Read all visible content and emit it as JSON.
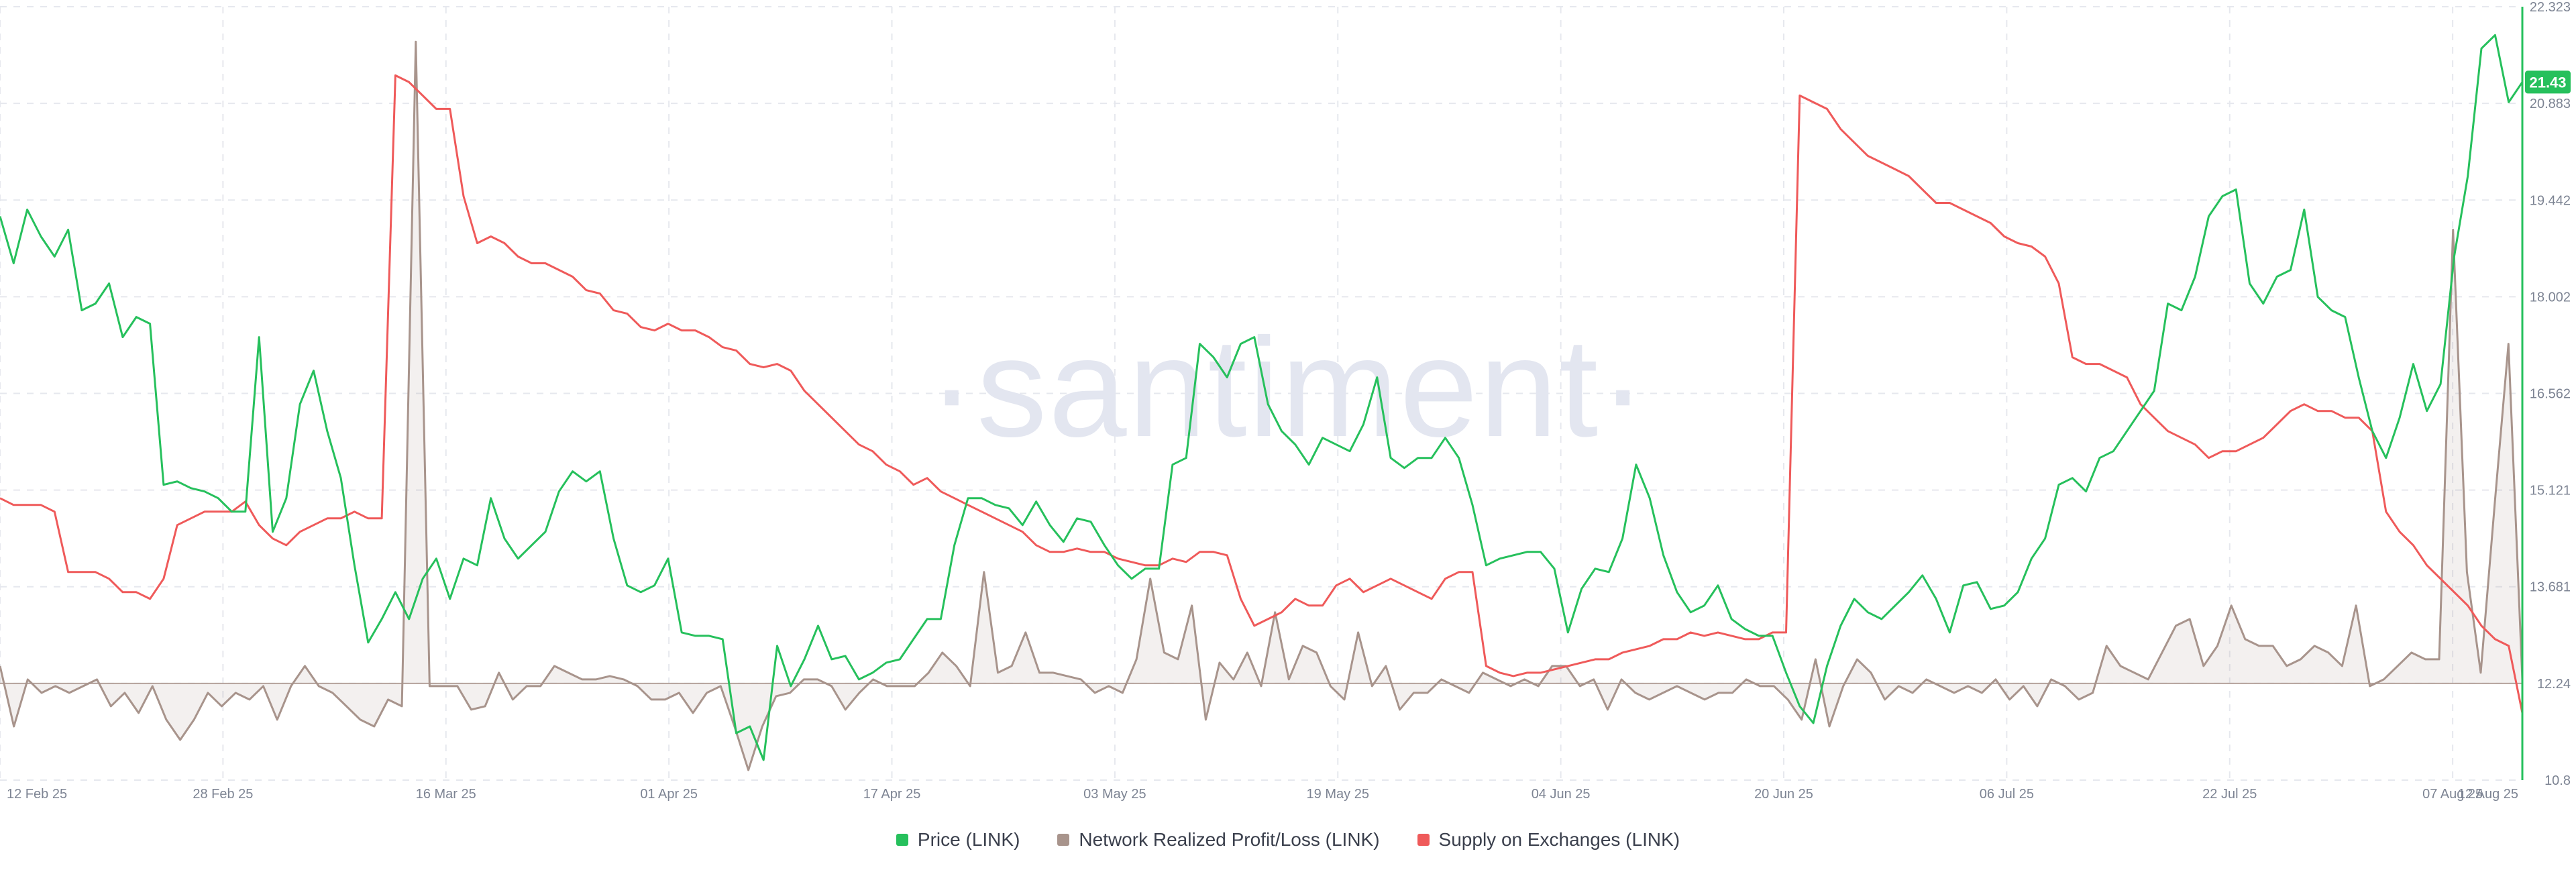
{
  "watermark": "·santiment·",
  "legend": [
    {
      "label": "Price (LINK)",
      "color": "#26c05c"
    },
    {
      "label": "Network Realized Profit/Loss (LINK)",
      "color": "#a8948c"
    },
    {
      "label": "Supply on Exchanges (LINK)",
      "color": "#ef5a5a"
    }
  ],
  "chart_data": {
    "type": "line",
    "x_ticks": [
      "12 Feb 25",
      "28 Feb 25",
      "16 Mar 25",
      "01 Apr 25",
      "17 Apr 25",
      "03 May 25",
      "19 May 25",
      "04 Jun 25",
      "20 Jun 25",
      "06 Jul 25",
      "22 Jul 25",
      "07 Aug 25",
      "12 Aug 25"
    ],
    "x_range": [
      "2025-02-12",
      "2025-08-12"
    ],
    "y_axis": {
      "label": "Price (LINK)",
      "ticks": [
        "10.8",
        "12.24",
        "13.681",
        "15.121",
        "16.562",
        "18.002",
        "19.442",
        "20.883",
        "22.323"
      ],
      "range": [
        10.8,
        22.323
      ],
      "color": "#26c05c",
      "last_value_label": "21.43"
    },
    "grid": true,
    "legend_position": "bottom-center",
    "series": [
      {
        "name": "Price (LINK)",
        "color": "#26c05c",
        "values": [
          19.2,
          18.5,
          19.3,
          18.9,
          18.6,
          19.0,
          17.8,
          17.9,
          18.2,
          17.4,
          17.7,
          17.6,
          15.2,
          15.25,
          15.15,
          15.1,
          15.0,
          14.8,
          14.8,
          17.4,
          14.5,
          15.0,
          16.4,
          16.9,
          16.0,
          15.3,
          14.0,
          12.85,
          13.2,
          13.6,
          13.2,
          13.8,
          14.1,
          13.5,
          14.1,
          14.0,
          15.0,
          14.4,
          14.1,
          14.3,
          14.5,
          15.1,
          15.4,
          15.25,
          15.4,
          14.4,
          13.7,
          13.6,
          13.7,
          14.1,
          13.0,
          12.95,
          12.95,
          12.9,
          11.5,
          11.6,
          11.1,
          12.8,
          12.2,
          12.6,
          13.1,
          12.6,
          12.65,
          12.3,
          12.4,
          12.55,
          12.6,
          12.9,
          13.2,
          13.2,
          14.3,
          15.0,
          15.0,
          14.9,
          14.85,
          14.6,
          14.95,
          14.6,
          14.35,
          14.7,
          14.65,
          14.3,
          14.0,
          13.8,
          13.95,
          13.95,
          15.5,
          15.6,
          17.3,
          17.1,
          16.8,
          17.3,
          17.4,
          16.4,
          16.0,
          15.8,
          15.5,
          15.9,
          15.8,
          15.7,
          16.1,
          16.8,
          15.6,
          15.45,
          15.6,
          15.6,
          15.9,
          15.6,
          14.9,
          14.0,
          14.1,
          14.15,
          14.2,
          14.2,
          13.95,
          13.0,
          13.65,
          13.95,
          13.9,
          14.4,
          15.5,
          15.0,
          14.15,
          13.6,
          13.3,
          13.4,
          13.7,
          13.2,
          13.05,
          12.95,
          12.95,
          12.4,
          11.9,
          11.65,
          12.5,
          13.1,
          13.5,
          13.3,
          13.2,
          13.4,
          13.6,
          13.85,
          13.5,
          13.0,
          13.7,
          13.75,
          13.35,
          13.4,
          13.6,
          14.1,
          14.4,
          15.2,
          15.3,
          15.1,
          15.6,
          15.7,
          16.0,
          16.3,
          16.6,
          17.9,
          17.8,
          18.3,
          19.2,
          19.5,
          19.6,
          18.2,
          17.9,
          18.3,
          18.4,
          19.3,
          18.0,
          17.8,
          17.7,
          16.8,
          16.0,
          15.6,
          16.2,
          17.0,
          16.3,
          16.7,
          18.6,
          19.8,
          21.7,
          21.9,
          20.9,
          21.2
        ]
      },
      {
        "name": "Network Realized Profit/Loss (LINK)",
        "color": "#a8948c",
        "values": [
          12.5,
          11.6,
          12.3,
          12.1,
          12.2,
          12.1,
          12.2,
          12.3,
          11.9,
          12.1,
          11.8,
          12.2,
          11.7,
          11.4,
          11.7,
          12.1,
          11.9,
          12.1,
          12.0,
          12.2,
          11.7,
          12.2,
          12.5,
          12.2,
          12.1,
          11.9,
          11.7,
          11.6,
          12.0,
          11.9,
          21.8,
          12.2,
          12.2,
          12.2,
          11.85,
          11.9,
          12.4,
          12.0,
          12.2,
          12.2,
          12.5,
          12.4,
          12.3,
          12.3,
          12.35,
          12.3,
          12.2,
          12.0,
          12.0,
          12.1,
          11.8,
          12.1,
          12.2,
          11.6,
          10.95,
          11.6,
          12.05,
          12.1,
          12.3,
          12.3,
          12.2,
          11.85,
          12.1,
          12.3,
          12.2,
          12.2,
          12.2,
          12.4,
          12.7,
          12.5,
          12.2,
          13.9,
          12.4,
          12.5,
          13.0,
          12.4,
          12.4,
          12.35,
          12.3,
          12.1,
          12.2,
          12.1,
          12.6,
          13.8,
          12.7,
          12.6,
          13.4,
          11.7,
          12.55,
          12.3,
          12.7,
          12.2,
          13.3,
          12.3,
          12.8,
          12.7,
          12.2,
          12.0,
          13.0,
          12.2,
          12.5,
          11.85,
          12.1,
          12.1,
          12.3,
          12.2,
          12.1,
          12.4,
          12.3,
          12.2,
          12.3,
          12.2,
          12.5,
          12.5,
          12.2,
          12.3,
          11.85,
          12.3,
          12.1,
          12.0,
          12.1,
          12.2,
          12.1,
          12.0,
          12.1,
          12.1,
          12.3,
          12.2,
          12.2,
          12.0,
          11.7,
          12.6,
          11.6,
          12.2,
          12.6,
          12.4,
          12.0,
          12.2,
          12.1,
          12.3,
          12.2,
          12.1,
          12.2,
          12.1,
          12.3,
          12.0,
          12.2,
          11.9,
          12.3,
          12.2,
          12.0,
          12.1,
          12.8,
          12.5,
          12.4,
          12.3,
          12.7,
          13.1,
          13.2,
          12.5,
          12.8,
          13.4,
          12.9,
          12.8,
          12.8,
          12.5,
          12.6,
          12.8,
          12.7,
          12.5,
          13.4,
          12.2,
          12.3,
          12.5,
          12.7,
          12.6,
          12.6,
          19.0,
          13.9,
          12.4,
          14.9,
          17.3,
          12.3
        ]
      },
      {
        "name": "Supply on Exchanges (LINK)",
        "color": "#ef5a5a",
        "values": [
          15.0,
          14.9,
          14.9,
          14.9,
          14.8,
          13.9,
          13.9,
          13.9,
          13.8,
          13.6,
          13.6,
          13.5,
          13.8,
          14.6,
          14.7,
          14.8,
          14.8,
          14.8,
          14.95,
          14.6,
          14.4,
          14.3,
          14.5,
          14.6,
          14.7,
          14.7,
          14.8,
          14.7,
          14.7,
          21.3,
          21.2,
          21.0,
          20.8,
          20.8,
          19.5,
          18.8,
          18.9,
          18.8,
          18.6,
          18.5,
          18.5,
          18.4,
          18.3,
          18.1,
          18.05,
          17.8,
          17.75,
          17.55,
          17.5,
          17.6,
          17.5,
          17.5,
          17.4,
          17.25,
          17.2,
          17.0,
          16.95,
          17.0,
          16.9,
          16.6,
          16.4,
          16.2,
          16.0,
          15.8,
          15.7,
          15.5,
          15.4,
          15.2,
          15.3,
          15.1,
          15.0,
          14.9,
          14.8,
          14.7,
          14.6,
          14.5,
          14.3,
          14.2,
          14.2,
          14.25,
          14.2,
          14.2,
          14.1,
          14.05,
          14.0,
          14.0,
          14.1,
          14.05,
          14.2,
          14.2,
          14.15,
          13.5,
          13.1,
          13.2,
          13.3,
          13.5,
          13.4,
          13.4,
          13.7,
          13.8,
          13.6,
          13.7,
          13.8,
          13.7,
          13.6,
          13.5,
          13.8,
          13.9,
          13.9,
          12.5,
          12.4,
          12.35,
          12.4,
          12.4,
          12.45,
          12.5,
          12.55,
          12.6,
          12.6,
          12.7,
          12.75,
          12.8,
          12.9,
          12.9,
          13.0,
          12.95,
          13.0,
          12.95,
          12.9,
          12.9,
          13.0,
          13.0,
          21.0,
          20.9,
          20.8,
          20.5,
          20.3,
          20.1,
          20.0,
          19.9,
          19.8,
          19.6,
          19.4,
          19.4,
          19.3,
          19.2,
          19.1,
          18.9,
          18.8,
          18.75,
          18.6,
          18.2,
          17.1,
          17.0,
          17.0,
          16.9,
          16.8,
          16.4,
          16.2,
          16.0,
          15.9,
          15.8,
          15.6,
          15.7,
          15.7,
          15.8,
          15.9,
          16.1,
          16.3,
          16.4,
          16.3,
          16.3,
          16.2,
          16.2,
          16.0,
          14.8,
          14.5,
          14.3,
          14.0,
          13.8,
          13.6,
          13.4,
          13.1,
          12.9,
          12.8,
          11.8
        ]
      }
    ]
  }
}
